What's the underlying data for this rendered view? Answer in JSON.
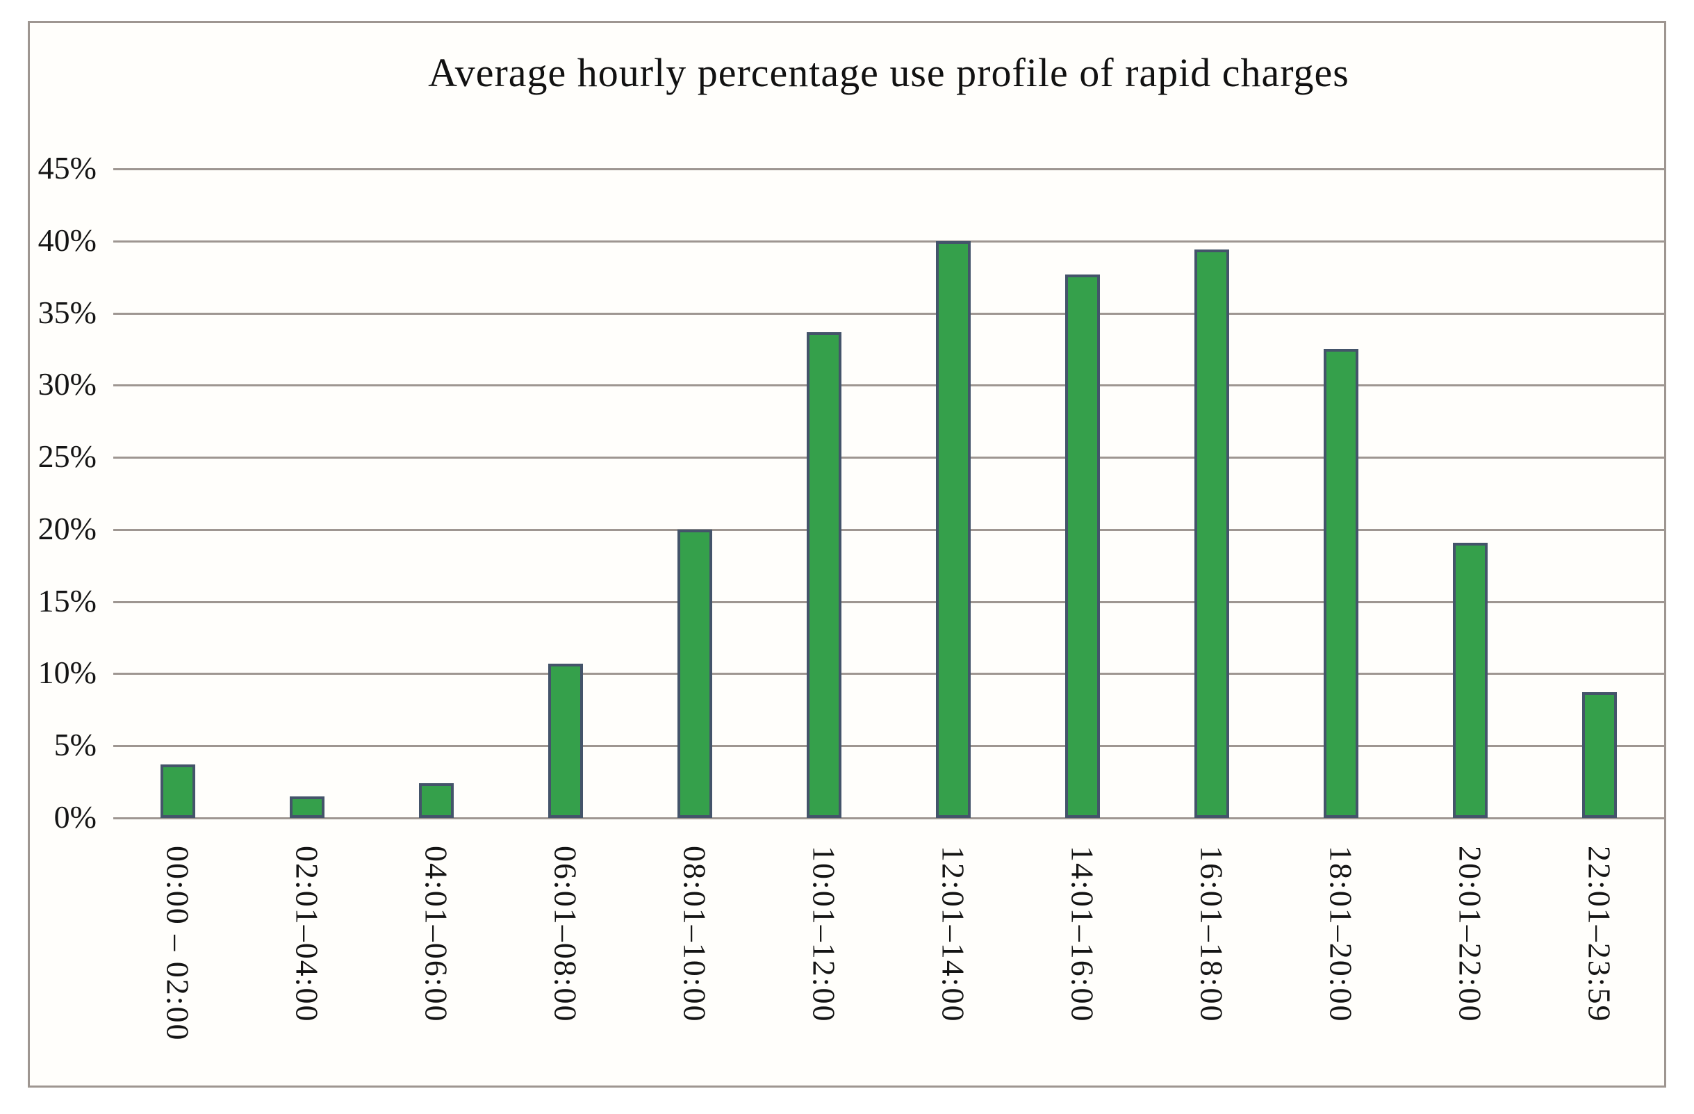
{
  "chart_data": {
    "type": "bar",
    "title": "Average hourly percentage use profile of rapid charges",
    "categories": [
      "00:00 – 02:00",
      "02:01–04:00",
      "04:01–06:00",
      "06:01–08:00",
      "08:01–10:00",
      "10:01–12:00",
      "12:01–14:00",
      "14:01–16:00",
      "16:01–18:00",
      "18:01–20:00",
      "20:01–22:00",
      "22:01–23:59"
    ],
    "values": [
      3.7,
      1.5,
      2.4,
      10.7,
      20.0,
      33.7,
      40.0,
      37.7,
      39.4,
      32.5,
      19.1,
      8.7
    ],
    "xlabel": "",
    "ylabel": "",
    "ylim": [
      0,
      45
    ],
    "ytick_values": [
      0,
      5,
      10,
      15,
      20,
      25,
      30,
      35,
      40,
      45
    ],
    "ytick_labels": [
      "0%",
      "5%",
      "10%",
      "15%",
      "20%",
      "25%",
      "30%",
      "35%",
      "40%",
      "45%"
    ],
    "grid": "horizontal gridlines on, every 5%",
    "legend": "none",
    "bar_fill_color": "#35A04B",
    "bar_border_color": "#44546A",
    "gridline_color": "#9E9691",
    "frame_border_color": "#9E9691",
    "plot_background": "#FFFEFB",
    "text_color": "#141414"
  }
}
